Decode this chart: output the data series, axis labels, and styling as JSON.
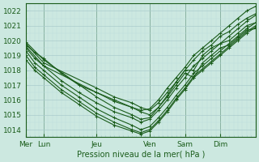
{
  "xlabel": "Pression niveau de la mer( hPa )",
  "background_color": "#cce8e0",
  "plot_bg_color": "#cce8e0",
  "grid_color_major": "#aacccc",
  "grid_color_minor": "#bbdddd",
  "line_color": "#1a5c1a",
  "ylim": [
    1013.5,
    1022.5
  ],
  "yticks": [
    1014,
    1015,
    1016,
    1017,
    1018,
    1019,
    1020,
    1021,
    1022
  ],
  "day_labels": [
    "Mer",
    "Lun",
    "Jeu",
    "Ven",
    "Sam",
    "Dim"
  ],
  "day_positions": [
    0,
    8,
    32,
    56,
    72,
    88
  ],
  "xlim": [
    0,
    104
  ],
  "series": [
    {
      "x": [
        0,
        4,
        8,
        16,
        24,
        32,
        40,
        48,
        52,
        56,
        60,
        64,
        68,
        72,
        76,
        80,
        84,
        88,
        92,
        96,
        100,
        104
      ],
      "y": [
        1019.7,
        1019.2,
        1018.8,
        1017.8,
        1017.0,
        1016.5,
        1016.0,
        1015.5,
        1015.3,
        1015.4,
        1016.0,
        1016.8,
        1017.5,
        1018.2,
        1019.0,
        1019.5,
        1020.0,
        1020.5,
        1021.0,
        1021.5,
        1022.0,
        1022.3
      ]
    },
    {
      "x": [
        0,
        4,
        8,
        16,
        24,
        32,
        40,
        48,
        52,
        56,
        60,
        64,
        68,
        72,
        76,
        80,
        84,
        88,
        92,
        96,
        100,
        104
      ],
      "y": [
        1019.5,
        1018.8,
        1018.3,
        1017.3,
        1016.5,
        1015.8,
        1015.2,
        1014.8,
        1014.5,
        1014.7,
        1015.3,
        1016.0,
        1016.8,
        1017.5,
        1018.3,
        1018.8,
        1019.3,
        1019.8,
        1020.3,
        1020.8,
        1021.3,
        1021.7
      ]
    },
    {
      "x": [
        0,
        4,
        8,
        16,
        24,
        32,
        40,
        48,
        52,
        56,
        60,
        64,
        68,
        72,
        76,
        80,
        84,
        88,
        92,
        96,
        100,
        104
      ],
      "y": [
        1019.3,
        1018.5,
        1018.0,
        1017.0,
        1016.2,
        1015.4,
        1014.8,
        1014.3,
        1014.0,
        1014.2,
        1014.8,
        1015.5,
        1016.3,
        1017.0,
        1017.8,
        1018.3,
        1018.8,
        1019.3,
        1019.8,
        1020.3,
        1020.8,
        1021.2
      ]
    },
    {
      "x": [
        0,
        4,
        8,
        16,
        24,
        32,
        40,
        48,
        52,
        56,
        60,
        64,
        68,
        72,
        76,
        80,
        84,
        88,
        92,
        96,
        100,
        104
      ],
      "y": [
        1019.0,
        1018.2,
        1017.7,
        1016.7,
        1015.9,
        1015.1,
        1014.5,
        1014.0,
        1013.8,
        1014.0,
        1014.6,
        1015.3,
        1016.1,
        1016.8,
        1017.6,
        1018.1,
        1018.6,
        1019.1,
        1019.6,
        1020.1,
        1020.6,
        1021.0
      ]
    },
    {
      "x": [
        0,
        4,
        8,
        16,
        24,
        32,
        40,
        48,
        52,
        56,
        60,
        64,
        68,
        72,
        76,
        80,
        84,
        88,
        92,
        96,
        100,
        104
      ],
      "y": [
        1018.7,
        1018.0,
        1017.5,
        1016.5,
        1015.7,
        1014.9,
        1014.3,
        1013.9,
        1013.7,
        1013.9,
        1014.5,
        1015.2,
        1016.0,
        1016.7,
        1017.5,
        1018.0,
        1018.5,
        1019.0,
        1019.5,
        1020.0,
        1020.5,
        1020.9
      ]
    },
    {
      "x": [
        0,
        8,
        32,
        40,
        48,
        52,
        56,
        60,
        64,
        68,
        72,
        76,
        80,
        84,
        88,
        92,
        96,
        100,
        104
      ],
      "y": [
        1019.8,
        1018.5,
        1016.8,
        1016.2,
        1015.8,
        1015.5,
        1015.3,
        1015.8,
        1016.5,
        1017.2,
        1018.0,
        1018.0,
        1019.0,
        1019.5,
        1019.8,
        1020.0,
        1020.5,
        1021.0,
        1021.2
      ]
    },
    {
      "x": [
        0,
        8,
        32,
        40,
        48,
        52,
        56,
        60,
        64,
        68,
        72,
        76,
        80,
        84,
        88,
        92,
        96,
        100,
        104
      ],
      "y": [
        1019.6,
        1018.3,
        1016.5,
        1015.9,
        1015.5,
        1015.2,
        1015.0,
        1015.5,
        1016.2,
        1017.0,
        1017.8,
        1017.5,
        1018.5,
        1019.0,
        1019.5,
        1019.7,
        1020.2,
        1020.7,
        1020.8
      ]
    },
    {
      "x": [
        0,
        8,
        32,
        40,
        48,
        52,
        56,
        60,
        64,
        68,
        72,
        76,
        80,
        84,
        88,
        92,
        96,
        100,
        104
      ],
      "y": [
        1019.9,
        1018.7,
        1016.2,
        1015.5,
        1015.0,
        1014.7,
        1014.8,
        1015.5,
        1016.3,
        1017.2,
        1018.0,
        1018.7,
        1019.3,
        1019.7,
        1020.3,
        1020.6,
        1021.1,
        1021.5,
        1021.8
      ]
    }
  ]
}
